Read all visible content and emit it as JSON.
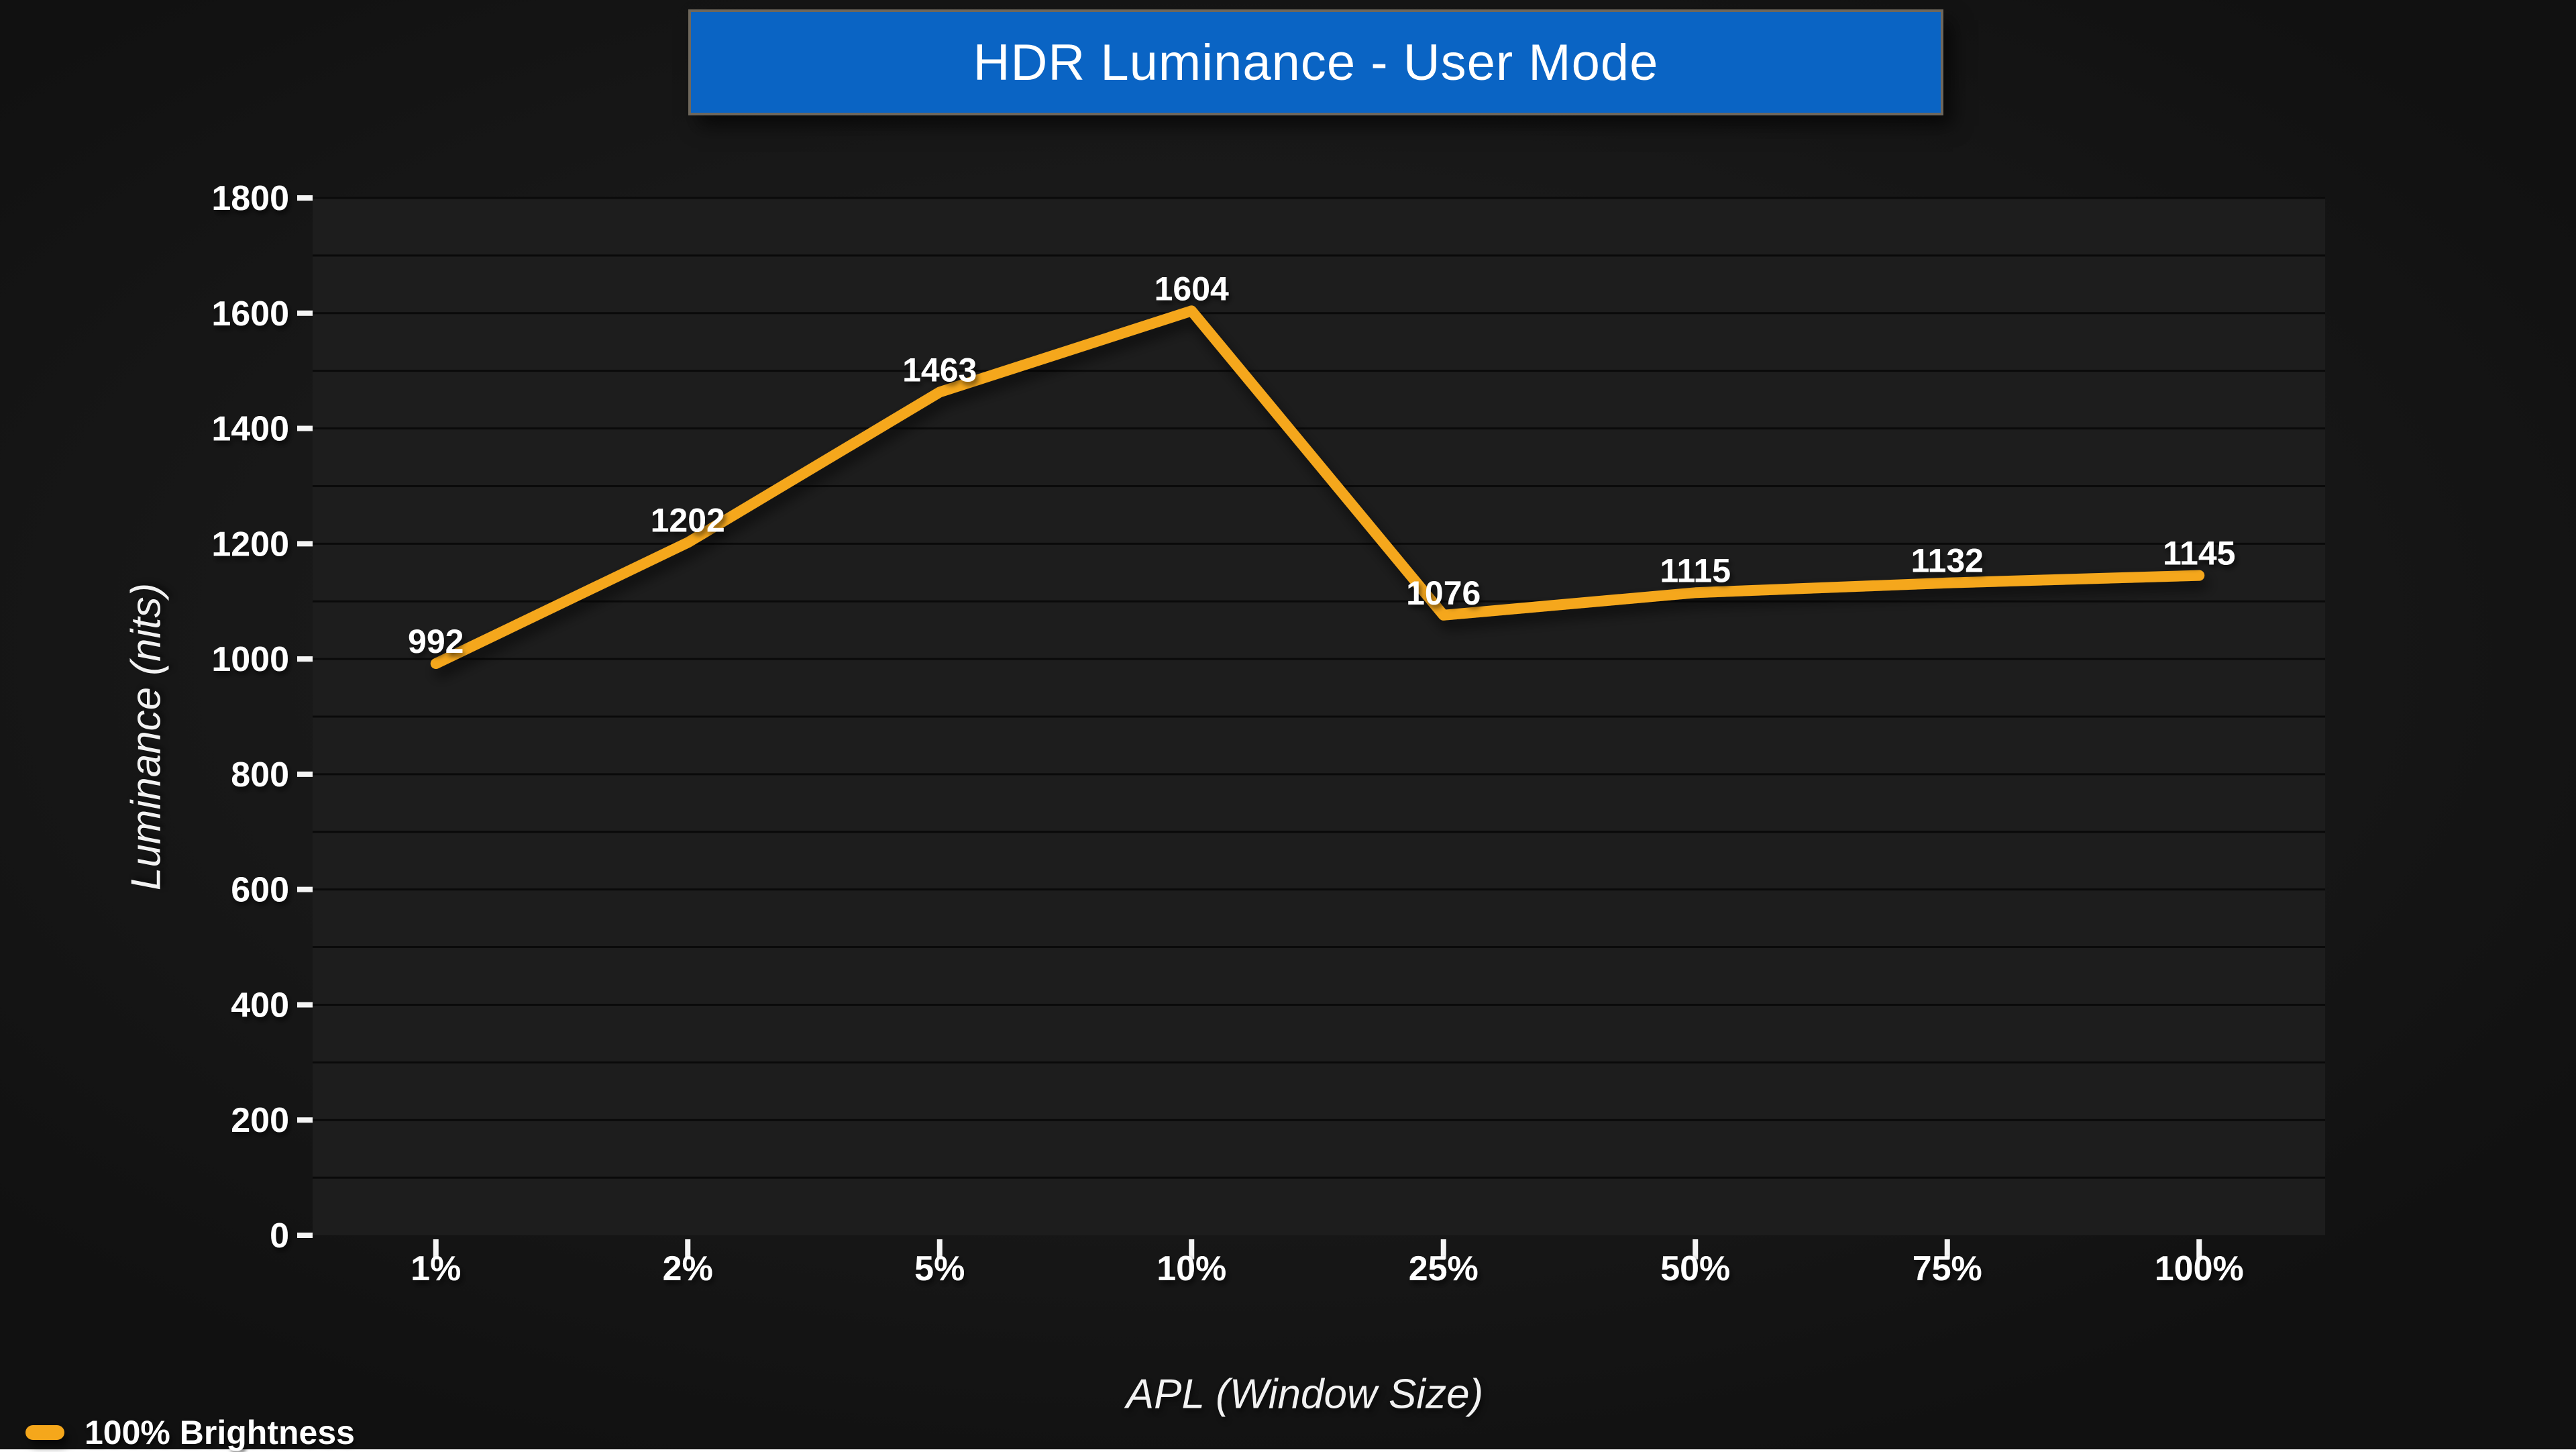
{
  "title": {
    "text": "HDR Luminance - User Mode",
    "bg_color": "#0a64c4",
    "border_color": "#6e675c",
    "text_color": "#ffffff"
  },
  "chart_data": {
    "type": "line",
    "title": "HDR Luminance - User Mode",
    "categories": [
      "1%",
      "2%",
      "5%",
      "10%",
      "25%",
      "50%",
      "75%",
      "100%"
    ],
    "series": [
      {
        "name": "100% Brightness",
        "color": "#f5a71b",
        "values": [
          992,
          1202,
          1463,
          1604,
          1076,
          1115,
          1132,
          1145
        ]
      }
    ],
    "xlabel": "APL (Window Size)",
    "ylabel": "Luminance (nits)",
    "ylim": [
      0,
      1800
    ],
    "ytick_step": 200,
    "grid_step": 100,
    "grid": "horizontal",
    "data_labels": true,
    "legend_position": "bottom-left"
  },
  "colors": {
    "page_bg": "#191919",
    "plot_bg": "#1d1d1d",
    "gridline": "#0a0a0a",
    "axis": "#f5f5f5",
    "tick_text": "#ffffff",
    "data_label_text": "#ffffff",
    "series_accent": "#f5a71b"
  }
}
